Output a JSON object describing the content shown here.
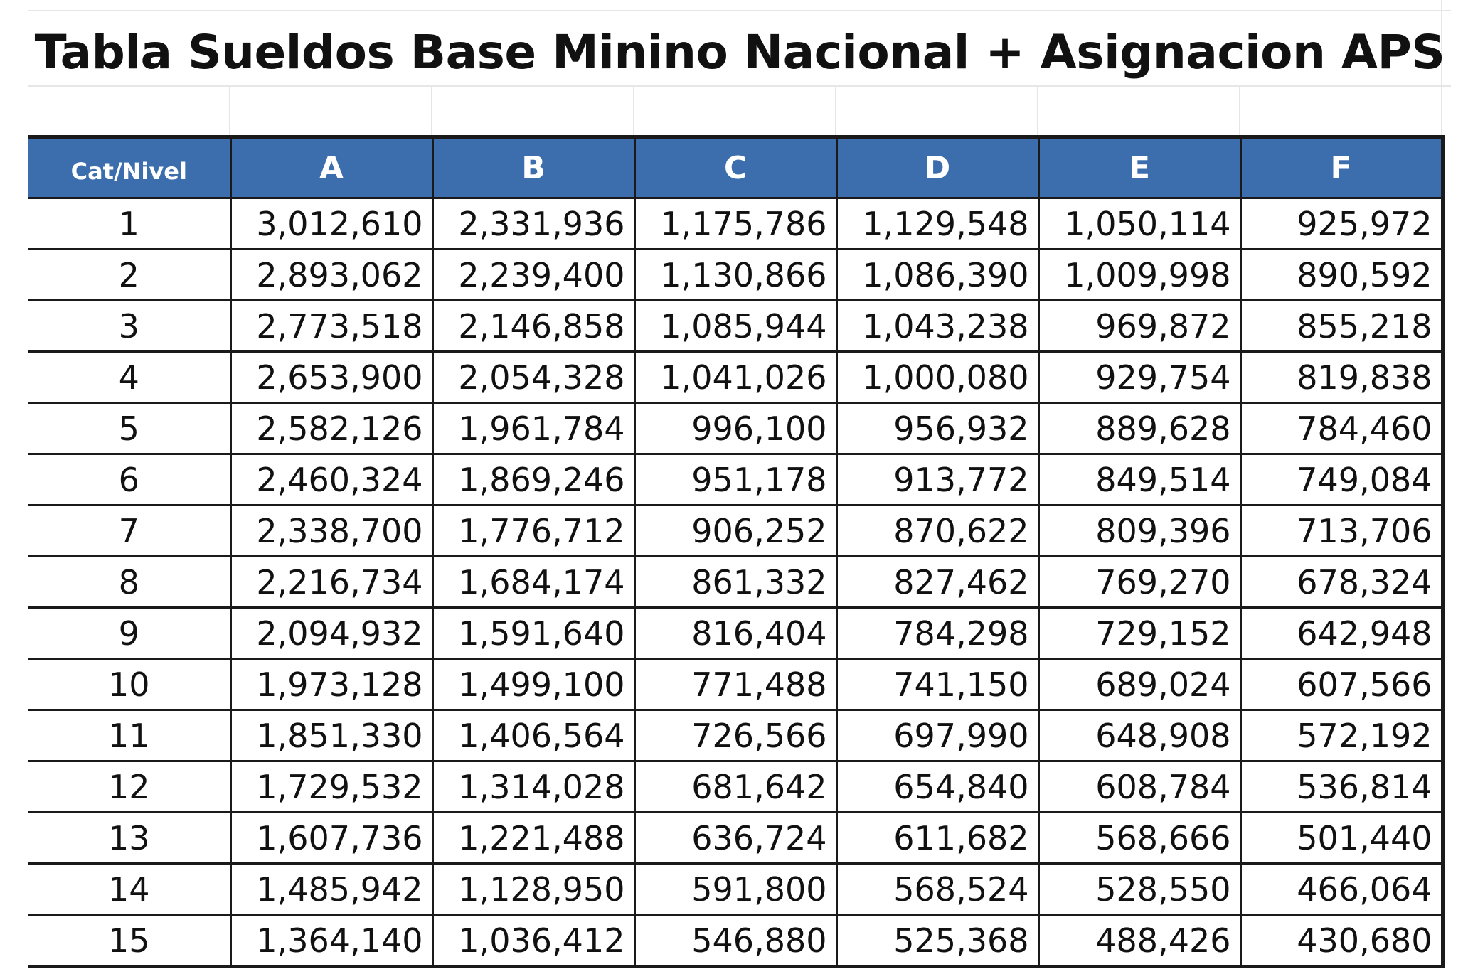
{
  "title": "Tabla Sueldos Base Minino Nacional + Asignacion APS",
  "table": {
    "corner_header": "Cat/Nivel",
    "columns": [
      "A",
      "B",
      "C",
      "D",
      "E",
      "F"
    ],
    "rows": [
      {
        "cat": "1",
        "values": [
          "3,012,610",
          "2,331,936",
          "1,175,786",
          "1,129,548",
          "1,050,114",
          "925,972"
        ]
      },
      {
        "cat": "2",
        "values": [
          "2,893,062",
          "2,239,400",
          "1,130,866",
          "1,086,390",
          "1,009,998",
          "890,592"
        ]
      },
      {
        "cat": "3",
        "values": [
          "2,773,518",
          "2,146,858",
          "1,085,944",
          "1,043,238",
          "969,872",
          "855,218"
        ]
      },
      {
        "cat": "4",
        "values": [
          "2,653,900",
          "2,054,328",
          "1,041,026",
          "1,000,080",
          "929,754",
          "819,838"
        ]
      },
      {
        "cat": "5",
        "values": [
          "2,582,126",
          "1,961,784",
          "996,100",
          "956,932",
          "889,628",
          "784,460"
        ]
      },
      {
        "cat": "6",
        "values": [
          "2,460,324",
          "1,869,246",
          "951,178",
          "913,772",
          "849,514",
          "749,084"
        ]
      },
      {
        "cat": "7",
        "values": [
          "2,338,700",
          "1,776,712",
          "906,252",
          "870,622",
          "809,396",
          "713,706"
        ]
      },
      {
        "cat": "8",
        "values": [
          "2,216,734",
          "1,684,174",
          "861,332",
          "827,462",
          "769,270",
          "678,324"
        ]
      },
      {
        "cat": "9",
        "values": [
          "2,094,932",
          "1,591,640",
          "816,404",
          "784,298",
          "729,152",
          "642,948"
        ]
      },
      {
        "cat": "10",
        "values": [
          "1,973,128",
          "1,499,100",
          "771,488",
          "741,150",
          "689,024",
          "607,566"
        ]
      },
      {
        "cat": "11",
        "values": [
          "1,851,330",
          "1,406,564",
          "726,566",
          "697,990",
          "648,908",
          "572,192"
        ]
      },
      {
        "cat": "12",
        "values": [
          "1,729,532",
          "1,314,028",
          "681,642",
          "654,840",
          "608,784",
          "536,814"
        ]
      },
      {
        "cat": "13",
        "values": [
          "1,607,736",
          "1,221,488",
          "636,724",
          "611,682",
          "568,666",
          "501,440"
        ]
      },
      {
        "cat": "14",
        "values": [
          "1,485,942",
          "1,128,950",
          "591,800",
          "568,524",
          "528,550",
          "466,064"
        ]
      },
      {
        "cat": "15",
        "values": [
          "1,364,140",
          "1,036,412",
          "546,880",
          "525,368",
          "488,426",
          "430,680"
        ]
      }
    ]
  },
  "colors": {
    "header_background": "#3c6ead",
    "header_text": "#ffffff",
    "border": "#1a1a1a"
  }
}
